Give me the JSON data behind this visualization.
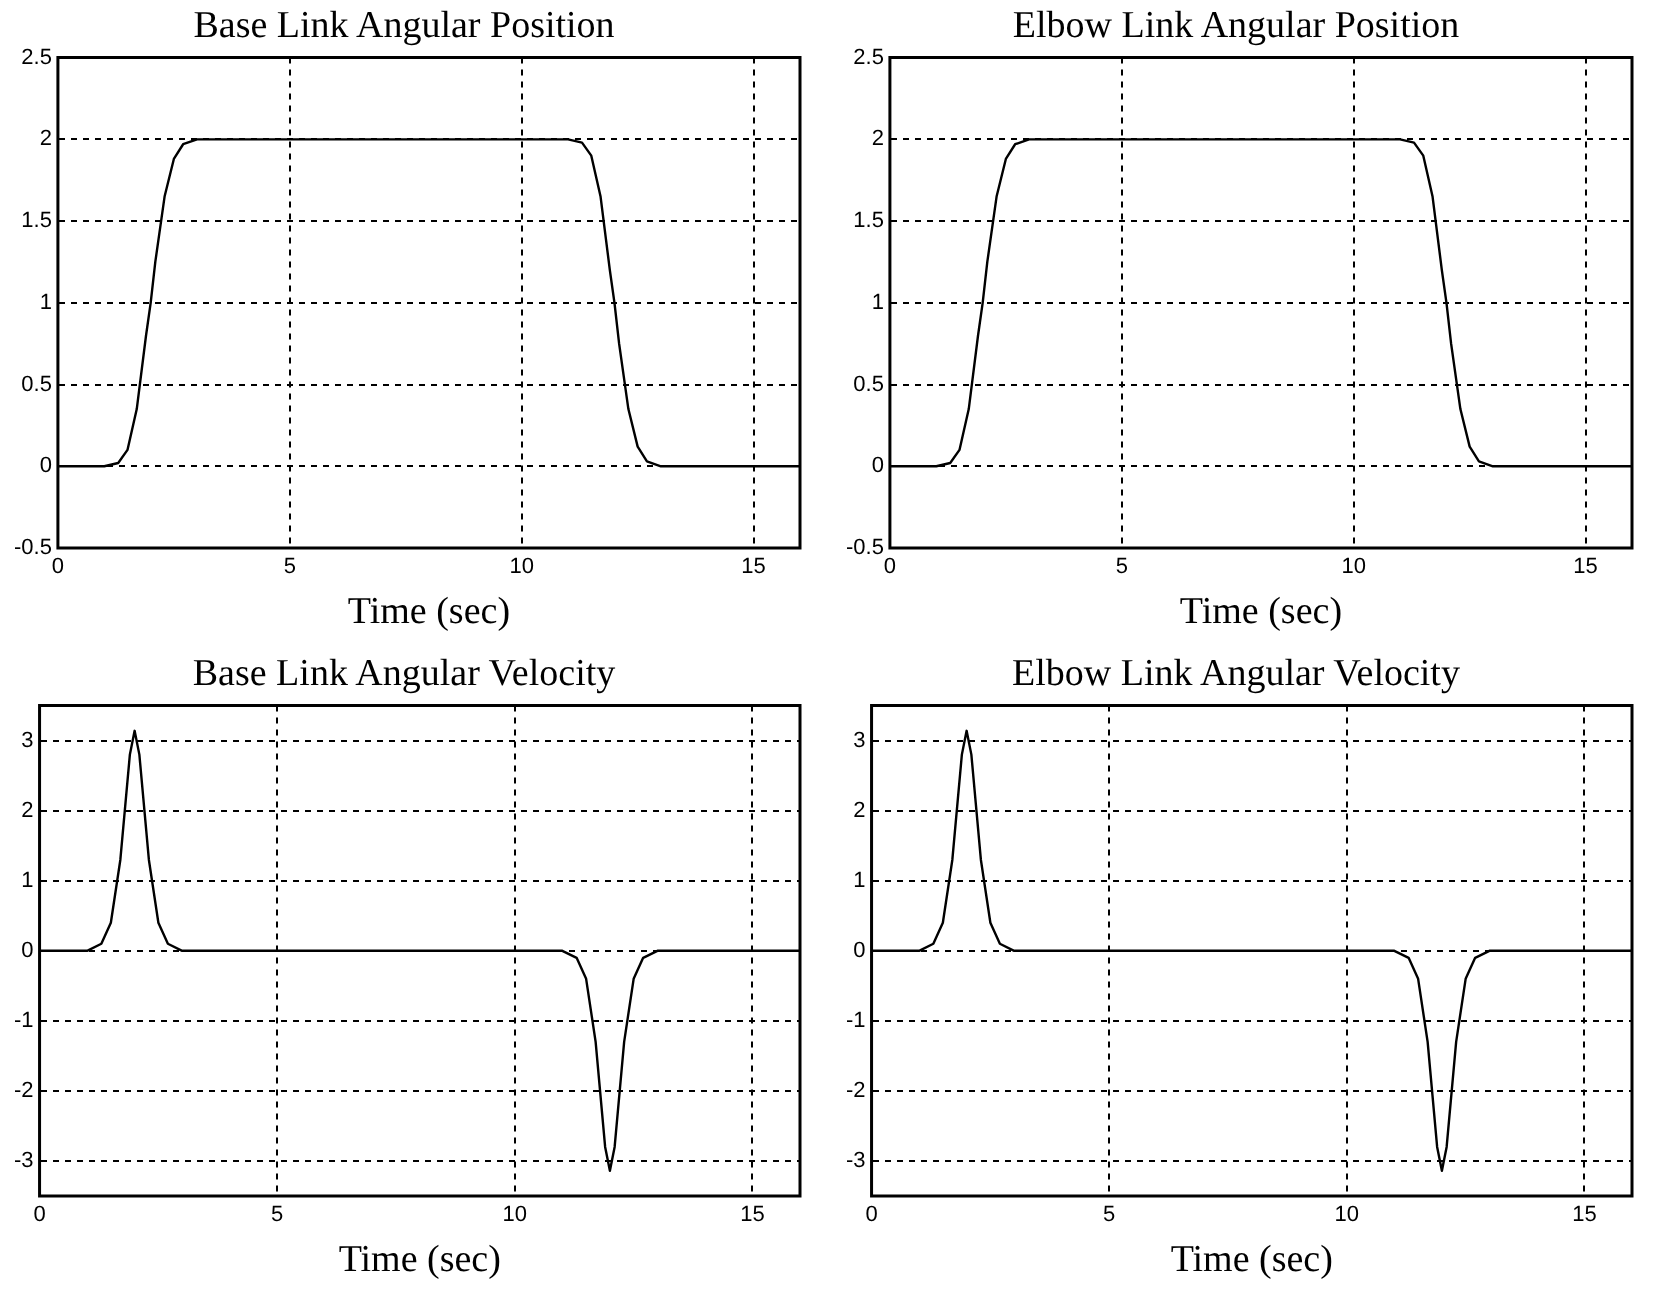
{
  "chart_data": [
    {
      "type": "line",
      "title": "Base Link Angular Position",
      "xlabel": "Time (sec)",
      "x": [
        0,
        1,
        1.3,
        1.5,
        1.7,
        1.9,
        2,
        2.1,
        2.3,
        2.5,
        2.7,
        3,
        11,
        11.3,
        11.5,
        11.7,
        11.9,
        12,
        12.1,
        12.3,
        12.5,
        12.7,
        13,
        16
      ],
      "series": [
        {
          "color": "#000000",
          "values": [
            0,
            0,
            0.02,
            0.1,
            0.35,
            0.8,
            1.0,
            1.25,
            1.65,
            1.88,
            1.97,
            2,
            2,
            1.98,
            1.9,
            1.65,
            1.2,
            1.0,
            0.75,
            0.35,
            0.12,
            0.03,
            0,
            0
          ]
        }
      ],
      "xlim": [
        0,
        16
      ],
      "xticks": [
        0,
        5,
        10,
        15
      ],
      "ylim": [
        -0.5,
        2.5
      ],
      "yticks": [
        -0.5,
        0,
        0.5,
        1,
        1.5,
        2,
        2.5
      ],
      "grid": true
    },
    {
      "type": "line",
      "title": "Elbow Link Angular Position",
      "xlabel": "Time (sec)",
      "x": [
        0,
        1,
        1.3,
        1.5,
        1.7,
        1.9,
        2,
        2.1,
        2.3,
        2.5,
        2.7,
        3,
        11,
        11.3,
        11.5,
        11.7,
        11.9,
        12,
        12.1,
        12.3,
        12.5,
        12.7,
        13,
        16
      ],
      "series": [
        {
          "color": "#000000",
          "values": [
            0,
            0,
            0.02,
            0.1,
            0.35,
            0.8,
            1.0,
            1.25,
            1.65,
            1.88,
            1.97,
            2,
            2,
            1.98,
            1.9,
            1.65,
            1.2,
            1.0,
            0.75,
            0.35,
            0.12,
            0.03,
            0,
            0
          ]
        }
      ],
      "xlim": [
        0,
        16
      ],
      "xticks": [
        0,
        5,
        10,
        15
      ],
      "ylim": [
        -0.5,
        2.5
      ],
      "yticks": [
        -0.5,
        0,
        0.5,
        1,
        1.5,
        2,
        2.5
      ],
      "grid": true
    },
    {
      "type": "line",
      "title": "Base Link Angular Velocity",
      "xlabel": "Time (sec)",
      "x": [
        0,
        1,
        1.3,
        1.5,
        1.7,
        1.9,
        2,
        2.1,
        2.3,
        2.5,
        2.7,
        3,
        11,
        11.3,
        11.5,
        11.7,
        11.9,
        12,
        12.1,
        12.3,
        12.5,
        12.7,
        13,
        16
      ],
      "series": [
        {
          "color": "#000000",
          "values": [
            0,
            0,
            0.1,
            0.4,
            1.3,
            2.8,
            3.14,
            2.8,
            1.3,
            0.4,
            0.1,
            0,
            0,
            -0.1,
            -0.4,
            -1.3,
            -2.8,
            -3.14,
            -2.8,
            -1.3,
            -0.4,
            -0.1,
            0,
            0
          ]
        }
      ],
      "xlim": [
        0,
        16
      ],
      "xticks": [
        0,
        5,
        10,
        15
      ],
      "ylim": [
        -3.5,
        3.5
      ],
      "yticks": [
        -3,
        -2,
        -1,
        0,
        1,
        2,
        3
      ],
      "grid": true
    },
    {
      "type": "line",
      "title": "Elbow Link Angular Velocity",
      "xlabel": "Time (sec)",
      "x": [
        0,
        1,
        1.3,
        1.5,
        1.7,
        1.9,
        2,
        2.1,
        2.3,
        2.5,
        2.7,
        3,
        11,
        11.3,
        11.5,
        11.7,
        11.9,
        12,
        12.1,
        12.3,
        12.5,
        12.7,
        13,
        16
      ],
      "series": [
        {
          "color": "#000000",
          "values": [
            0,
            0,
            0.1,
            0.4,
            1.3,
            2.8,
            3.14,
            2.8,
            1.3,
            0.4,
            0.1,
            0,
            0,
            -0.1,
            -0.4,
            -1.3,
            -2.8,
            -3.14,
            -2.8,
            -1.3,
            -0.4,
            -0.1,
            0,
            0
          ]
        }
      ],
      "xlim": [
        0,
        16
      ],
      "xticks": [
        0,
        5,
        10,
        15
      ],
      "ylim": [
        -3.5,
        3.5
      ],
      "yticks": [
        -3,
        -2,
        -1,
        0,
        1,
        2,
        3
      ],
      "grid": true
    }
  ]
}
